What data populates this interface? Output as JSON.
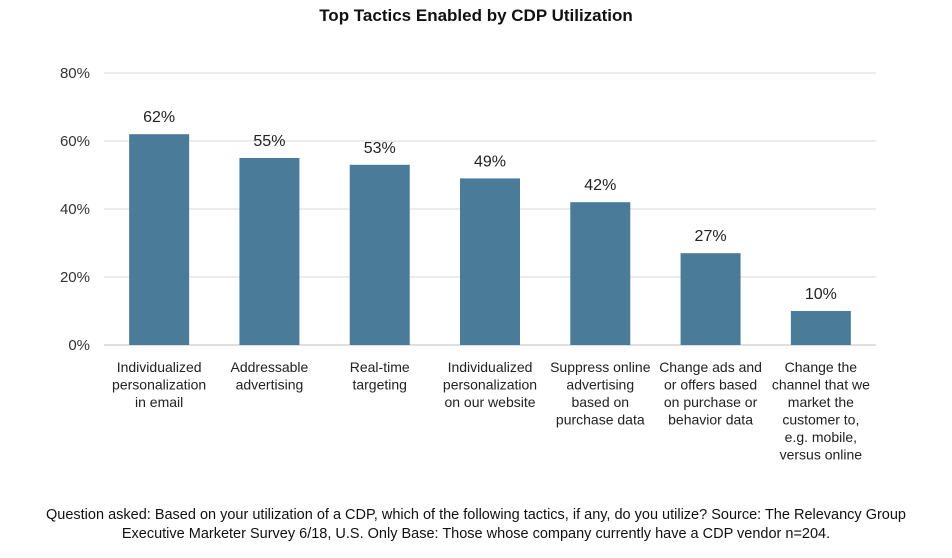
{
  "chart_data": {
    "type": "bar",
    "title": "Top Tactics Enabled by CDP Utilization",
    "xlabel": "",
    "ylabel": "",
    "ylim": [
      0,
      80
    ],
    "yticks": [
      0,
      20,
      40,
      60,
      80
    ],
    "ytick_labels": [
      "0%",
      "20%",
      "40%",
      "60%",
      "80%"
    ],
    "grid": true,
    "legend": "none",
    "bar_color": "#4a7b98",
    "categories": [
      [
        "Individualized",
        "personalization",
        "in email"
      ],
      [
        "Addressable",
        "advertising"
      ],
      [
        "Real-time",
        "targeting"
      ],
      [
        "Individualized",
        "personalization",
        "on our website"
      ],
      [
        "Suppress online",
        "advertising",
        "based on",
        "purchase data"
      ],
      [
        "Change ads and",
        "or offers based",
        "on purchase or",
        "behavior data"
      ],
      [
        "Change the",
        "channel that we",
        "market the",
        "customer to,",
        "e.g. mobile,",
        "versus online"
      ]
    ],
    "values": [
      62,
      55,
      53,
      49,
      42,
      27,
      10
    ],
    "data_labels": [
      "62%",
      "55%",
      "53%",
      "49%",
      "42%",
      "27%",
      "10%"
    ]
  },
  "footnote": "Question asked: Based on your utilization of a CDP, which of the following tactics, if any, do you utilize? Source: The Relevancy Group Executive Marketer Survey 6/18, U.S. Only Base: Those whose company currently have a CDP vendor n=204."
}
